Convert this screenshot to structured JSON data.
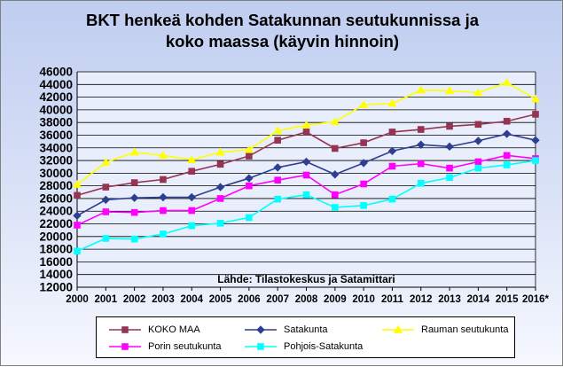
{
  "chart_data": {
    "type": "line",
    "title_line1": "BKT henkeä kohden Satakunnan seutukunnissa ja",
    "title_line2": "koko maassa (käyvin hinnoin)",
    "source_note": "Lähde: Tilastokeskus ja Satamittari",
    "categories": [
      "2000",
      "2001",
      "2002",
      "2003",
      "2004",
      "2005",
      "2006",
      "2007",
      "2008",
      "2009",
      "2010",
      "2011",
      "2012",
      "2013",
      "2014",
      "2015",
      "2016*"
    ],
    "y_ticks": [
      "12000",
      "14000",
      "16000",
      "18000",
      "20000",
      "22000",
      "24000",
      "26000",
      "28000",
      "30000",
      "32000",
      "34000",
      "36000",
      "38000",
      "40000",
      "42000",
      "44000",
      "46000"
    ],
    "ylim": [
      12000,
      46000
    ],
    "grid": true,
    "legend_position": "bottom",
    "series": [
      {
        "name": "KOKO MAA",
        "color": "#953553",
        "marker": "square",
        "values": [
          26500,
          27800,
          28500,
          29000,
          30300,
          31400,
          32700,
          35200,
          36500,
          33900,
          34800,
          36500,
          36900,
          37400,
          37700,
          38200,
          39300
        ]
      },
      {
        "name": "Satakunta",
        "color": "#2e3f91",
        "marker": "diamond",
        "values": [
          23300,
          25800,
          26100,
          26200,
          26200,
          27800,
          29200,
          30900,
          31800,
          29800,
          31600,
          33500,
          34500,
          34200,
          35100,
          36200,
          35200
        ]
      },
      {
        "name": "Rauman seutukunta",
        "color": "#ffff00",
        "marker": "triangle",
        "values": [
          28200,
          31700,
          33300,
          32800,
          32100,
          33300,
          33700,
          36700,
          37600,
          38100,
          40800,
          41000,
          43100,
          43000,
          42700,
          44300,
          41700
        ]
      },
      {
        "name": "Porin seutukunta",
        "color": "#ff00ff",
        "marker": "square",
        "values": [
          21800,
          23900,
          23800,
          24100,
          24100,
          26000,
          28000,
          28900,
          29700,
          26600,
          28300,
          31100,
          31500,
          30800,
          31800,
          32800,
          32300
        ]
      },
      {
        "name": "Pohjois-Satakunta",
        "color": "#00ffff",
        "marker": "square",
        "values": [
          17700,
          19700,
          19600,
          20400,
          21700,
          22100,
          23000,
          25900,
          26600,
          24600,
          24900,
          25900,
          28400,
          29300,
          30800,
          31300,
          32000
        ]
      }
    ]
  }
}
